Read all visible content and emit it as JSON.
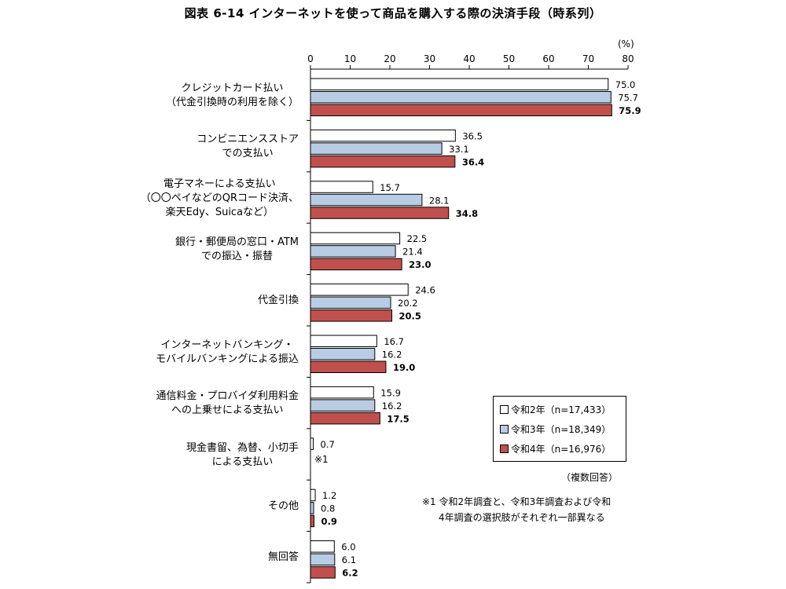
{
  "chart_data": {
    "type": "bar",
    "orientation": "horizontal",
    "title": "図表 6-14 インターネットを使って商品を購入する際の決済手段（時系列）",
    "unit": "(%)",
    "xlim": [
      0,
      80
    ],
    "ticks": [
      0,
      10,
      20,
      30,
      40,
      50,
      60,
      70,
      80
    ],
    "categories": [
      [
        "クレジットカード払い",
        "（代金引換時の利用を除く）"
      ],
      [
        "コンビニエンスストア",
        "での支払い"
      ],
      [
        "電子マネーによる支払い",
        "（〇〇ペイなどのQRコード決済、",
        "楽天Edy、Suicaなど）"
      ],
      [
        "銀行・郵便局の窓口・ATM",
        "での振込・振替"
      ],
      [
        "代金引換"
      ],
      [
        "インターネットバンキング・",
        "モバイルバンキングによる振込"
      ],
      [
        "通信料金・プロバイダ利用料金",
        "への上乗せによる支払い"
      ],
      [
        "現金書留、為替、小切手",
        "による支払い"
      ],
      [
        "その他"
      ],
      [
        "無回答"
      ]
    ],
    "series": [
      {
        "name": "令和2年（n=17,433）",
        "color": "#ffffff",
        "values": [
          75.0,
          36.5,
          15.7,
          22.5,
          24.6,
          16.7,
          15.9,
          0.7,
          1.2,
          6.0
        ],
        "labels": [
          "75.0",
          "36.5",
          "15.7",
          "22.5",
          "24.6",
          "16.7",
          "15.9",
          "0.7",
          "1.2",
          "6.0"
        ]
      },
      {
        "name": "令和3年（n=18,349）",
        "color": "#b8cce4",
        "values": [
          75.7,
          33.1,
          28.1,
          21.4,
          20.2,
          16.2,
          16.2,
          null,
          0.8,
          6.1
        ],
        "labels": [
          "75.7",
          "33.1",
          "28.1",
          "21.4",
          "20.2",
          "16.2",
          "16.2",
          null,
          "0.8",
          "6.1"
        ]
      },
      {
        "name": "令和4年（n=16,976）",
        "color": "#c0504d",
        "values": [
          75.9,
          36.4,
          34.8,
          23.0,
          20.5,
          19.0,
          17.5,
          null,
          0.9,
          6.2
        ],
        "labels": [
          "75.9",
          "36.4",
          "34.8",
          "23.0",
          "20.5",
          "19.0",
          "17.5",
          null,
          "0.9",
          "6.2"
        ]
      }
    ],
    "legend_position": "bottom-right"
  },
  "notes": {
    "sub_note": "※1",
    "multiple_answers": "（複数回答）",
    "footnote_line1": "※1 令和2年調査と、令和3年調査および令和",
    "footnote_line2": "4年調査の選択肢がそれぞれ一部異なる"
  }
}
